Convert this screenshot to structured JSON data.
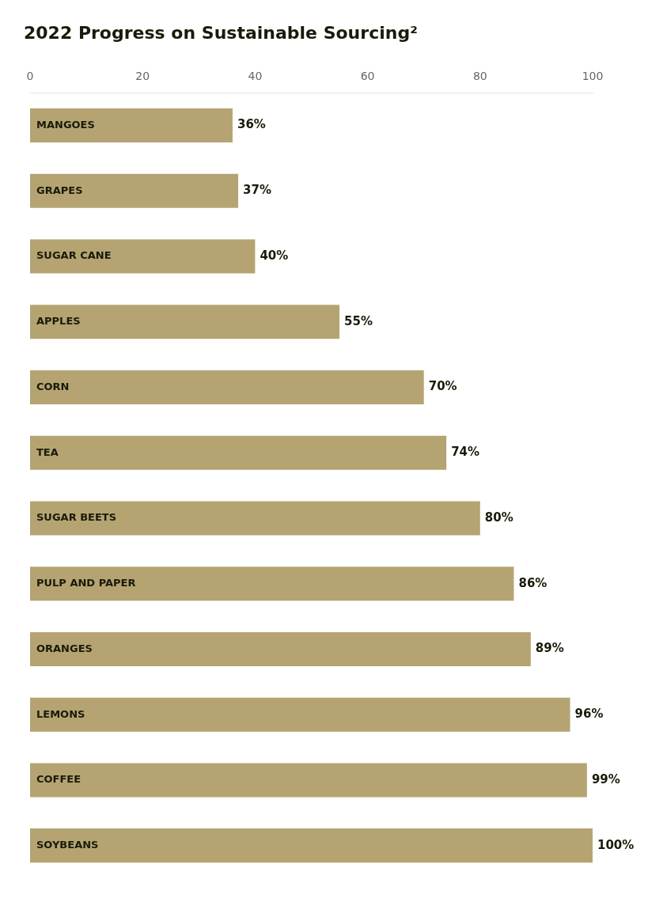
{
  "chart_data": {
    "type": "bar",
    "orientation": "horizontal",
    "title": "2022 Progress on Sustainable Sourcing²",
    "categories": [
      "MANGOES",
      "GRAPES",
      "SUGAR CANE",
      "APPLES",
      "CORN",
      "TEA",
      "SUGAR BEETS",
      "PULP AND PAPER",
      "ORANGES",
      "LEMONS",
      "COFFEE",
      "SOYBEANS"
    ],
    "values": [
      36,
      37,
      40,
      55,
      70,
      74,
      80,
      86,
      89,
      96,
      99,
      100
    ],
    "value_labels": [
      "36%",
      "37%",
      "40%",
      "55%",
      "70%",
      "74%",
      "80%",
      "86%",
      "89%",
      "96%",
      "99%",
      "100%"
    ],
    "data_labels": true,
    "color": "#b5a472",
    "xlim": [
      0,
      100
    ],
    "xticks": [
      0,
      20,
      40,
      60,
      80,
      100
    ],
    "grid": false,
    "tick_labels": "x"
  }
}
